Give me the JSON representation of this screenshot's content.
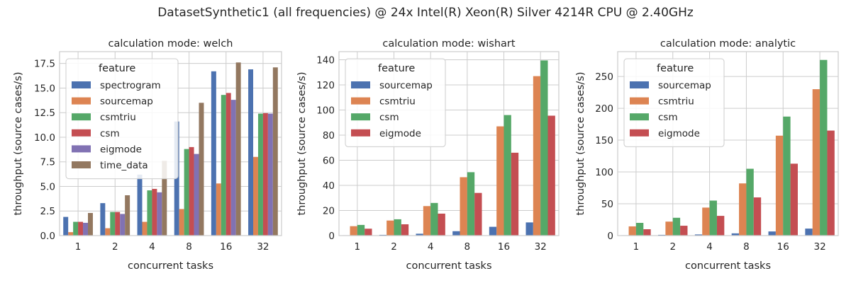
{
  "figure": {
    "title": "DatasetSynthetic1 (all frequencies) @ 24x Intel(R) Xeon(R) Silver 4214R CPU @ 2.40GHz"
  },
  "colors": {
    "spectrogram": "#4c72b0",
    "sourcemap": "#dd8452",
    "csmtriu": "#55a868",
    "csm": "#c44e52",
    "eigmode": "#8172b3",
    "time_data": "#937860"
  },
  "chart_data": [
    {
      "type": "bar",
      "title": "calculation mode: welch",
      "xlabel": "concurrent tasks",
      "ylabel": "throughput (source cases/s)",
      "categories": [
        "1",
        "2",
        "4",
        "8",
        "16",
        "32"
      ],
      "ylim": [
        0,
        18.7
      ],
      "yticks": [
        0.0,
        2.5,
        5.0,
        7.5,
        10.0,
        12.5,
        15.0,
        17.5
      ],
      "ytick_labels": [
        "0.0",
        "2.5",
        "5.0",
        "7.5",
        "10.0",
        "12.5",
        "15.0",
        "17.5"
      ],
      "grid": true,
      "legend": {
        "title": "feature",
        "position": "upper-left"
      },
      "series": [
        {
          "name": "spectrogram",
          "color": "#4c72b0",
          "values": [
            1.9,
            3.3,
            6.2,
            11.6,
            16.7,
            16.9
          ]
        },
        {
          "name": "sourcemap",
          "color": "#dd8452",
          "values": [
            0.35,
            0.75,
            1.4,
            2.7,
            5.3,
            8.0
          ]
        },
        {
          "name": "csmtriu",
          "color": "#55a868",
          "values": [
            1.4,
            2.4,
            4.6,
            8.8,
            14.3,
            12.4
          ]
        },
        {
          "name": "csm",
          "color": "#c44e52",
          "values": [
            1.4,
            2.4,
            4.75,
            9.0,
            14.5,
            12.45
          ]
        },
        {
          "name": "eigmode",
          "color": "#8172b3",
          "values": [
            1.3,
            2.2,
            4.4,
            8.3,
            13.8,
            12.4
          ]
        },
        {
          "name": "time_data",
          "color": "#937860",
          "values": [
            2.3,
            4.1,
            7.6,
            13.5,
            17.6,
            17.1
          ]
        }
      ]
    },
    {
      "type": "bar",
      "title": "calculation mode: wishart",
      "xlabel": "concurrent tasks",
      "ylabel": "throughput (source cases/s)",
      "categories": [
        "1",
        "2",
        "4",
        "8",
        "16",
        "32"
      ],
      "ylim": [
        0,
        146.5
      ],
      "yticks": [
        0,
        20,
        40,
        60,
        80,
        100,
        120,
        140
      ],
      "ytick_labels": [
        "0",
        "20",
        "40",
        "60",
        "80",
        "100",
        "120",
        "140"
      ],
      "grid": true,
      "legend": {
        "title": "feature",
        "position": "upper-left"
      },
      "series": [
        {
          "name": "sourcemap",
          "color": "#4c72b0",
          "values": [
            0.3,
            0.6,
            1.5,
            3.5,
            7.0,
            10.5
          ]
        },
        {
          "name": "csmtriu",
          "color": "#dd8452",
          "values": [
            7.5,
            12.0,
            23.5,
            46.5,
            87.0,
            127.0
          ]
        },
        {
          "name": "csm",
          "color": "#55a868",
          "values": [
            8.5,
            13.0,
            26.0,
            50.5,
            96.0,
            139.5
          ]
        },
        {
          "name": "eigmode",
          "color": "#c44e52",
          "values": [
            5.5,
            9.0,
            17.5,
            34.0,
            66.0,
            95.5
          ]
        }
      ]
    },
    {
      "type": "bar",
      "title": "calculation mode: analytic",
      "xlabel": "concurrent tasks",
      "ylabel": "throughput (source cases/s)",
      "categories": [
        "1",
        "2",
        "4",
        "8",
        "16",
        "32"
      ],
      "ylim": [
        0,
        289
      ],
      "yticks": [
        0,
        50,
        100,
        150,
        200,
        250
      ],
      "ytick_labels": [
        "0",
        "50",
        "100",
        "150",
        "200",
        "250"
      ],
      "grid": true,
      "legend": {
        "title": "feature",
        "position": "upper-left"
      },
      "series": [
        {
          "name": "sourcemap",
          "color": "#4c72b0",
          "values": [
            0.6,
            1.2,
            1.8,
            3.5,
            6.5,
            11.0
          ]
        },
        {
          "name": "csmtriu",
          "color": "#dd8452",
          "values": [
            14.5,
            22.0,
            44.0,
            82.0,
            157.0,
            230.0
          ]
        },
        {
          "name": "csm",
          "color": "#55a868",
          "values": [
            20.0,
            28.0,
            55.0,
            105.0,
            187.0,
            276.0
          ]
        },
        {
          "name": "eigmode",
          "color": "#c44e52",
          "values": [
            10.0,
            15.5,
            31.0,
            60.0,
            113.0,
            165.0
          ]
        }
      ]
    }
  ]
}
